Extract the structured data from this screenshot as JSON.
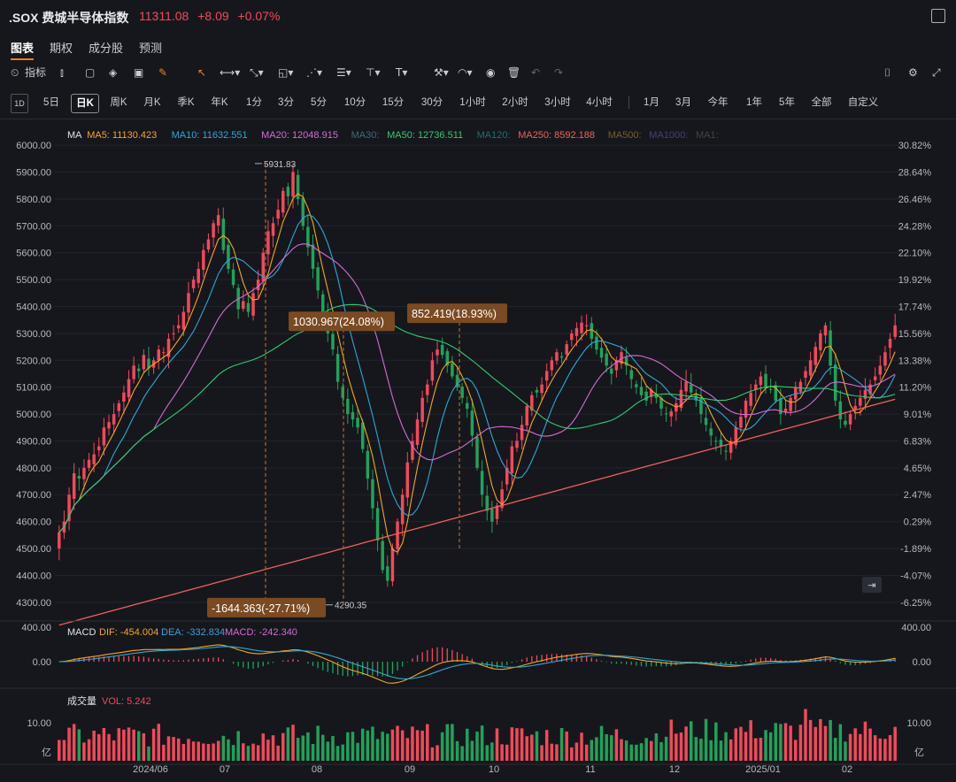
{
  "header": {
    "title": ".SOX 费城半导体指数",
    "price": "11311.08",
    "change": "+8.09",
    "change_pct": "+0.07%"
  },
  "tabs": [
    "图表",
    "期权",
    "成分股",
    "预测"
  ],
  "toolbar": {
    "indicator_label": "指标"
  },
  "periods": [
    "5日",
    "日K",
    "周K",
    "月K",
    "季K",
    "年K",
    "1分",
    "3分",
    "5分",
    "10分",
    "15分",
    "30分",
    "1小时",
    "2小时",
    "3小时",
    "4小时",
    "1月",
    "3月",
    "今年",
    "1年",
    "5年",
    "全部",
    "自定义"
  ],
  "selected_period": "日K",
  "colors": {
    "up": "#f2495b",
    "down": "#1fa35a",
    "ma5": "#f5a623",
    "ma10": "#2fa7d8",
    "ma20": "#d46bd8",
    "ma50": "#2ecc71",
    "ma250": "#f0605d",
    "diff": "#f5a623",
    "dea": "#2fa7d8",
    "accent": "#f07f1c"
  },
  "chart_data": {
    "type": "candlestick",
    "y_ticks_left": [
      "6000.00",
      "5900.00",
      "5800.00",
      "5700.00",
      "5600.00",
      "5500.00",
      "5400.00",
      "5300.00",
      "5200.00",
      "5100.00",
      "5000.00",
      "4900.00",
      "4800.00",
      "4700.00",
      "4600.00",
      "4500.00",
      "4400.00",
      "4300.00"
    ],
    "y_ticks_right": [
      "30.82%",
      "28.64%",
      "26.46%",
      "24.28%",
      "22.10%",
      "19.92%",
      "17.74%",
      "15.56%",
      "13.38%",
      "11.20%",
      "9.01%",
      "6.83%",
      "4.65%",
      "2.47%",
      "0.29%",
      "-1.89%",
      "-4.07%",
      "-6.25%"
    ],
    "ylim": [
      4250,
      6040
    ],
    "x_labels": [
      "2024/06",
      "07",
      "08",
      "09",
      "10",
      "11",
      "12",
      "2025/01",
      "02"
    ],
    "ma_legend": [
      {
        "label": "MA",
        "value": ""
      },
      {
        "label": "MA5: 11130.423",
        "value": "ma5"
      },
      {
        "label": "MA10: 11632.551",
        "value": "ma10"
      },
      {
        "label": "MA20: 12048.915",
        "value": "ma20"
      },
      {
        "label": "MA30:",
        "value": "ma30"
      },
      {
        "label": "MA50: 12736.511",
        "value": "ma50"
      },
      {
        "label": "MA120:",
        "value": "ma120"
      },
      {
        "label": "MA250: 8592.188",
        "value": "ma250"
      },
      {
        "label": "MA500:",
        "value": "ma500"
      },
      {
        "label": "MA1000:",
        "value": "ma1000"
      },
      {
        "label": "MA1:",
        "value": "ma1"
      }
    ],
    "high_label": "5931.83",
    "low_label": "4290.35",
    "annotations": [
      "-1644.363(-27.71%)",
      "1030.967(24.08%)",
      "852.419(18.93%)"
    ],
    "close": [
      4560,
      4600,
      4700,
      4780,
      4760,
      4800,
      4830,
      4850,
      4880,
      4950,
      4970,
      5000,
      5040,
      5080,
      5130,
      5180,
      5160,
      5220,
      5170,
      5200,
      5240,
      5230,
      5280,
      5300,
      5330,
      5380,
      5450,
      5500,
      5540,
      5610,
      5650,
      5710,
      5740,
      5610,
      5540,
      5480,
      5390,
      5420,
      5380,
      5450,
      5500,
      5600,
      5680,
      5710,
      5760,
      5830,
      5810,
      5900,
      5800,
      5700,
      5620,
      5540,
      5460,
      5380,
      5300,
      5240,
      5120,
      5060,
      5000,
      4980,
      4950,
      4870,
      4760,
      4650,
      4530,
      4420,
      4380,
      4500,
      4600,
      4700,
      4820,
      4900,
      4980,
      5060,
      5110,
      5200,
      5240,
      5220,
      5180,
      5140,
      5100,
      5060,
      5020,
      4920,
      4800,
      4700,
      4640,
      4600,
      4660,
      4720,
      4800,
      4880,
      4900,
      4960,
      5030,
      5070,
      5080,
      5110,
      5160,
      5200,
      5230,
      5210,
      5260,
      5300,
      5320,
      5340,
      5330,
      5280,
      5240,
      5210,
      5180,
      5150,
      5200,
      5230,
      5180,
      5130,
      5100,
      5070,
      5050,
      5090,
      5060,
      5020,
      5000,
      5010,
      5040,
      5090,
      5120,
      5080,
      5050,
      5000,
      4960,
      4920,
      4900,
      4880,
      4860,
      4900,
      4950,
      4990,
      5050,
      5080,
      5110,
      5140,
      5100,
      5090,
      5050,
      5000,
      5020,
      5060,
      5100,
      5120,
      5160,
      5200,
      5250,
      5300,
      5330,
      5180,
      5050,
      4980,
      4960,
      5000,
      5030,
      5060,
      5090,
      5110,
      5140,
      5180,
      5230,
      5280,
      5330
    ],
    "ma_series_note": "ma lines computed from close",
    "macd": {
      "label": "MACD",
      "dif": "DIF: -454.004",
      "dea": "DEA: -332.834",
      "macd": "MACD: -242.340",
      "ticks": [
        "400.00",
        "0.00"
      ]
    },
    "volume": {
      "label": "成交量",
      "vol": "VOL: 5.242",
      "ticks": [
        "10.00",
        "亿"
      ]
    }
  }
}
